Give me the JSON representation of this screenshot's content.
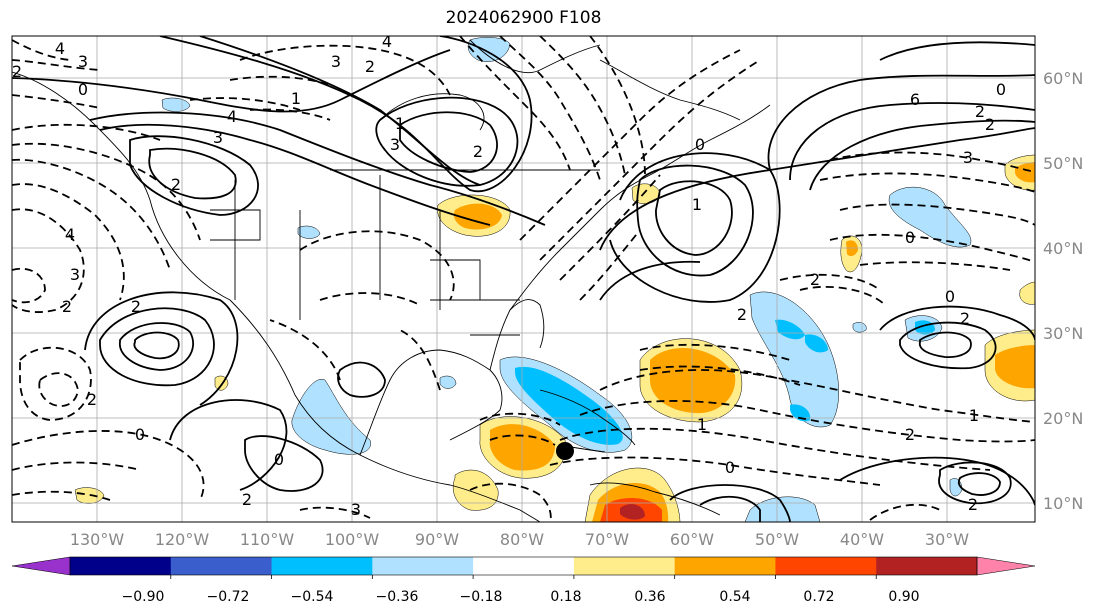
{
  "map": {
    "title": "2024062900 F108",
    "lon_ticks": [
      "130°W",
      "120°W",
      "110°W",
      "100°W",
      "90°W",
      "80°W",
      "70°W",
      "60°W",
      "50°W",
      "40°W",
      "30°W"
    ],
    "lat_ticks": [
      "60°N",
      "50°N",
      "40°N",
      "30°N",
      "20°N",
      "10°N"
    ],
    "contour_labels": [
      "4",
      "3",
      "2",
      "0",
      "1",
      "4",
      "3",
      "2",
      "1",
      "3",
      "2",
      "2",
      "3",
      "4",
      "6",
      "2",
      "0",
      "2",
      "3",
      "0",
      "4",
      "3",
      "2",
      "2",
      "1",
      "0",
      "2",
      "2",
      "0",
      "2",
      "1",
      "2",
      "1",
      "0",
      "0",
      "2",
      "0",
      "2",
      "3",
      "2"
    ],
    "colorbar": {
      "tick_labels": [
        "−0.90",
        "−0.72",
        "−0.54",
        "−0.36",
        "−0.18",
        "0.18",
        "0.36",
        "0.54",
        "0.72",
        "0.90"
      ],
      "colors": [
        "#9932cc",
        "#00008b",
        "#3a5fcd",
        "#00bfff",
        "#b0e2ff",
        "#ffffff",
        "#ffec8b",
        "#ffa500",
        "#ff4500",
        "#b22222",
        "#ff82ab"
      ]
    },
    "marker": {
      "label": "storm-center",
      "lon": -75,
      "lat": 16
    }
  }
}
